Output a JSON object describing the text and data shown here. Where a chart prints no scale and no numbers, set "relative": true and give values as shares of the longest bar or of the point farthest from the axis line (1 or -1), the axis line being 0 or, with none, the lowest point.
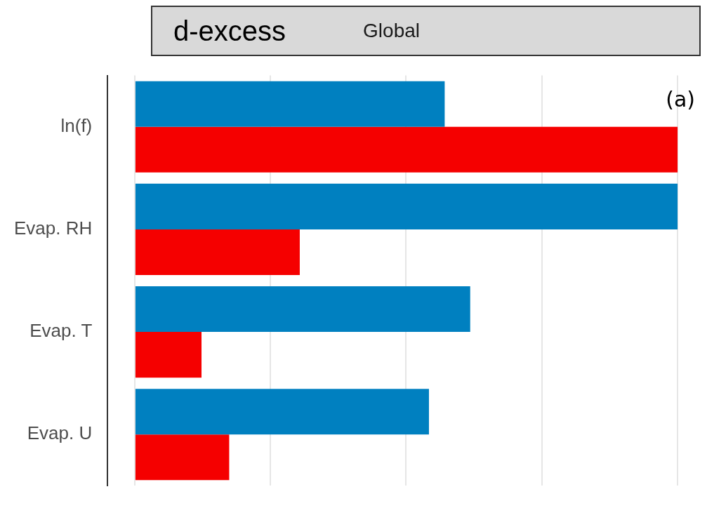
{
  "chart_data": {
    "type": "bar",
    "orientation": "horizontal",
    "relative": true,
    "title": "d-excess",
    "subtitle": "Global",
    "annotations": [
      "(a)"
    ],
    "categories": [
      "ln(f)",
      "Evap. RH",
      "Evap. T",
      "Evap. U"
    ],
    "grid": "x",
    "legend": false,
    "series": [
      {
        "color": "#0080c0",
        "values": [
          0.571,
          1,
          0.618,
          0.542
        ]
      },
      {
        "color": "#f50000",
        "values": [
          1,
          0.304,
          0.123,
          0.174
        ]
      }
    ]
  }
}
